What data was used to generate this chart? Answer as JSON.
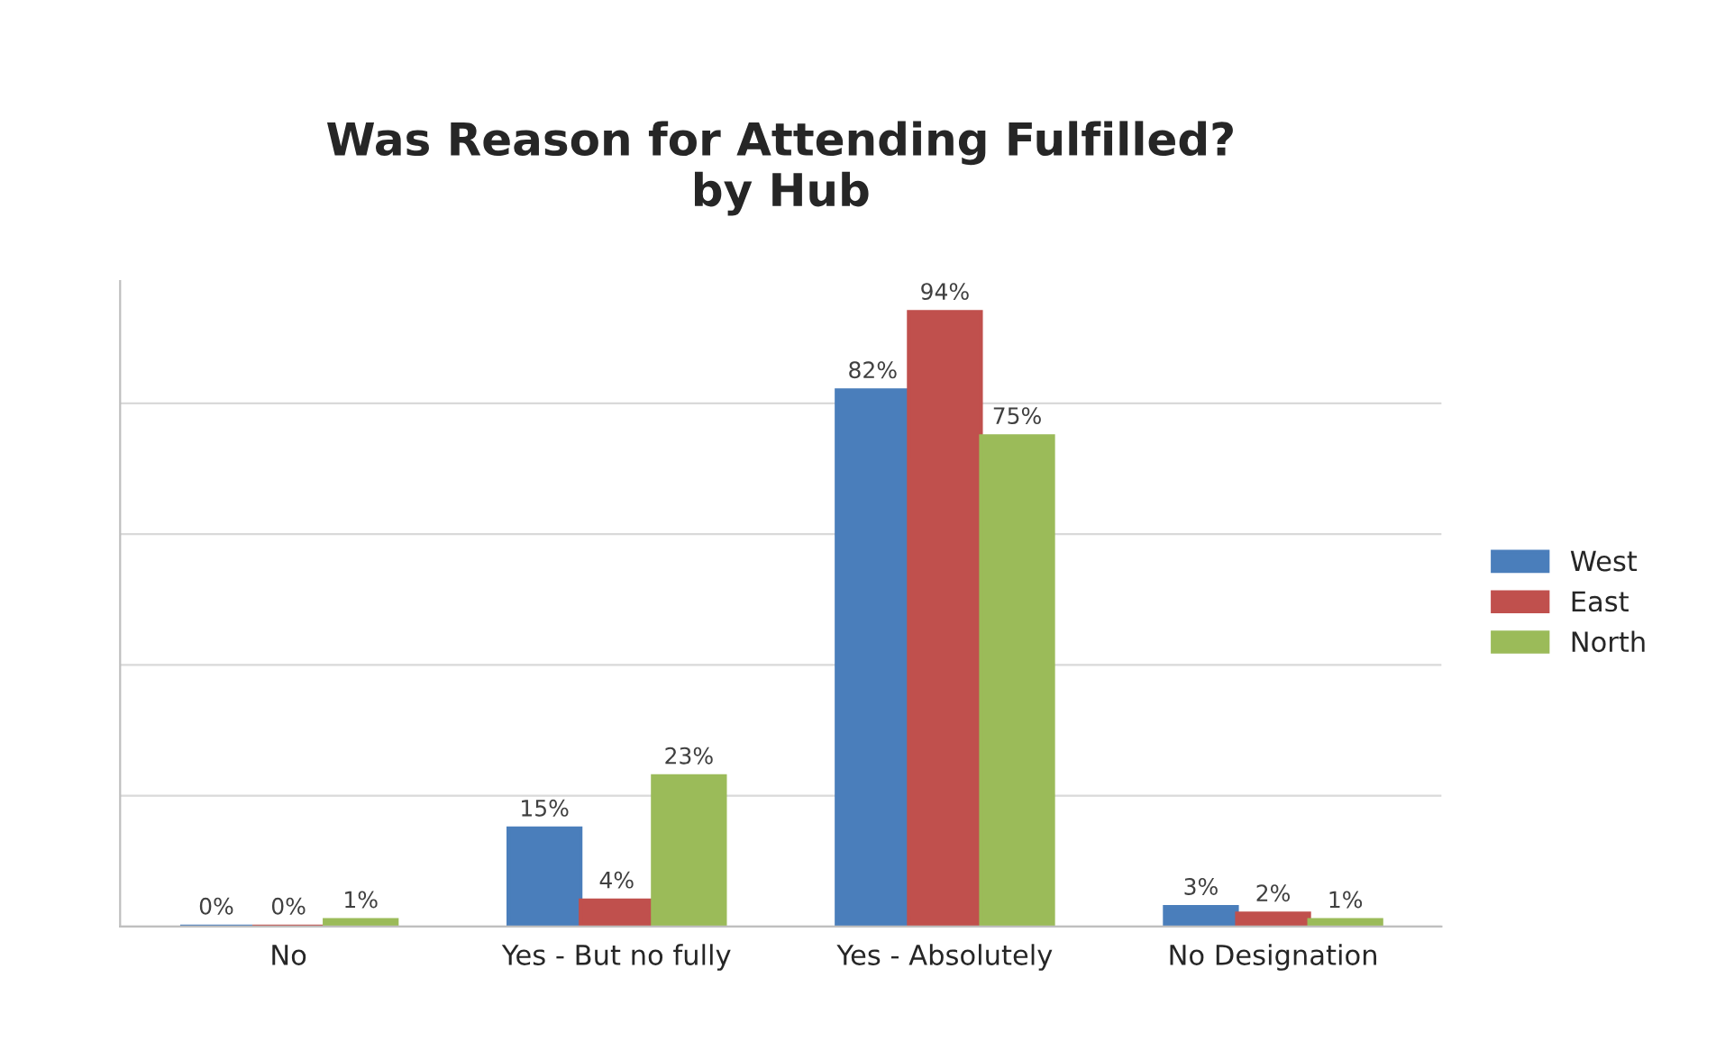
{
  "chart_data": {
    "type": "bar",
    "title": "Was Reason for Attending Fulfilled?\nby Hub",
    "categories": [
      "No",
      "Yes - But no fully",
      "Yes - Absolutely",
      "No Designation"
    ],
    "series": [
      {
        "name": "West",
        "color": "#4a7ebb",
        "values": [
          0,
          15,
          82,
          3
        ],
        "value_labels": [
          "0%",
          "15%",
          "82%",
          "3%"
        ]
      },
      {
        "name": "East",
        "color": "#c0504d",
        "values": [
          0,
          4,
          94,
          2
        ],
        "value_labels": [
          "0%",
          "4%",
          "94%",
          "2%"
        ]
      },
      {
        "name": "North",
        "color": "#9bbb59",
        "values": [
          1,
          23,
          75,
          1
        ],
        "value_labels": [
          "1%",
          "23%",
          "75%",
          "1%"
        ]
      }
    ],
    "tick_labels": "x",
    "grid": "y",
    "legend": "right"
  }
}
